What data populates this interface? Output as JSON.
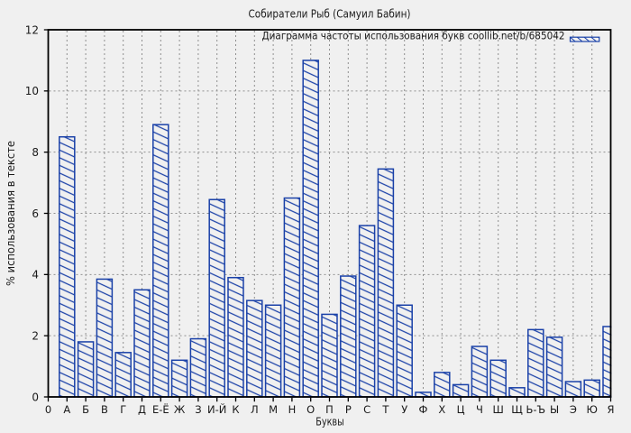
{
  "chart_data": {
    "type": "bar",
    "title": "Собиратели Рыб (Самуил Бабин)",
    "legend": "Диаграмма частоты использования букв coollib.net/b/685042",
    "legend_position": "top-right",
    "xlabel": "Буквы",
    "ylabel": "% использования в тексте",
    "origin_tick_label": "0",
    "categories": [
      "А",
      "Б",
      "В",
      "Г",
      "Д",
      "Е-Ё",
      "Ж",
      "З",
      "И-Й",
      "К",
      "Л",
      "М",
      "Н",
      "О",
      "П",
      "Р",
      "С",
      "Т",
      "У",
      "Ф",
      "Х",
      "Ц",
      "Ч",
      "Ш",
      "Щ",
      "Ь-Ъ",
      "Ы",
      "Э",
      "Ю",
      "Я"
    ],
    "values": [
      8.5,
      1.8,
      3.85,
      1.45,
      3.5,
      8.9,
      1.2,
      1.9,
      6.45,
      3.9,
      3.15,
      3.0,
      6.5,
      11.0,
      2.7,
      3.95,
      5.6,
      7.45,
      3.0,
      0.15,
      0.8,
      0.4,
      1.65,
      1.2,
      0.3,
      2.2,
      1.95,
      0.5,
      0.55,
      2.3
    ],
    "ylim": [
      0,
      12
    ],
    "ytick_step": 2,
    "grid": true,
    "hatch": "diagonal-backslash",
    "colors": {
      "bar": "#1a41a8",
      "background": "#f0f0f0",
      "grid": "#8f8f8f",
      "frame": "#000000",
      "text": "#1a1a1a"
    }
  }
}
